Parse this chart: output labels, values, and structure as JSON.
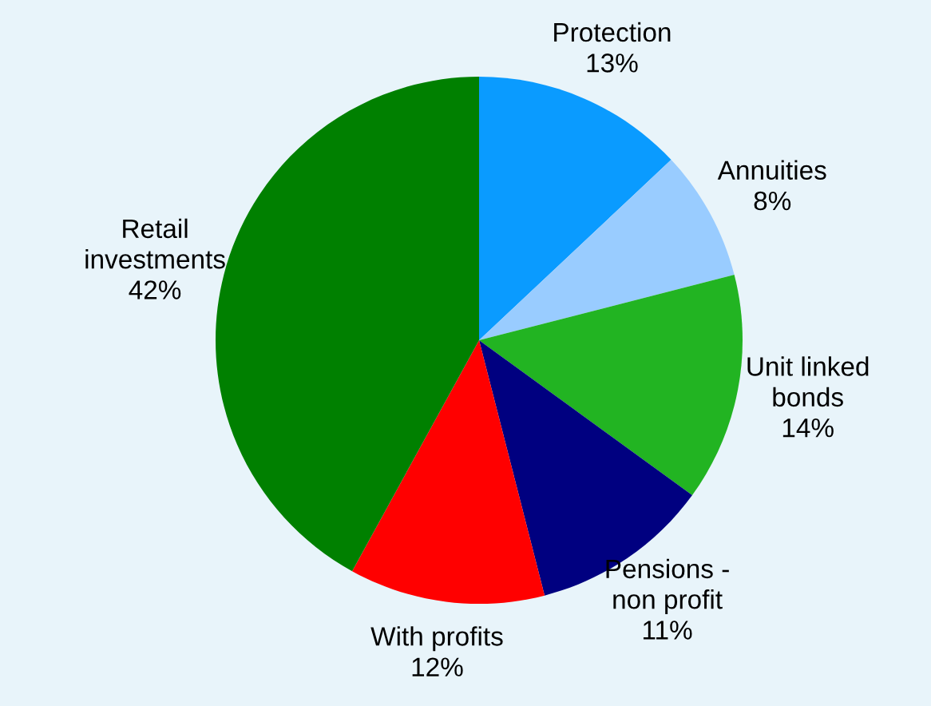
{
  "chart_data": {
    "type": "pie",
    "categories": [
      "Protection",
      "Annuities",
      "Unit linked\nbonds",
      "Pensions -\nnon profit",
      "With profits",
      "Retail\ninvestments"
    ],
    "values": [
      13,
      8,
      14,
      11,
      12,
      42
    ],
    "value_labels": [
      "13%",
      "8%",
      "14%",
      "11%",
      "12%",
      "42%"
    ],
    "colors": [
      "#0a9bff",
      "#99ccff",
      "#22b422",
      "#000080",
      "#ff0000",
      "#008000"
    ],
    "legend": false
  }
}
